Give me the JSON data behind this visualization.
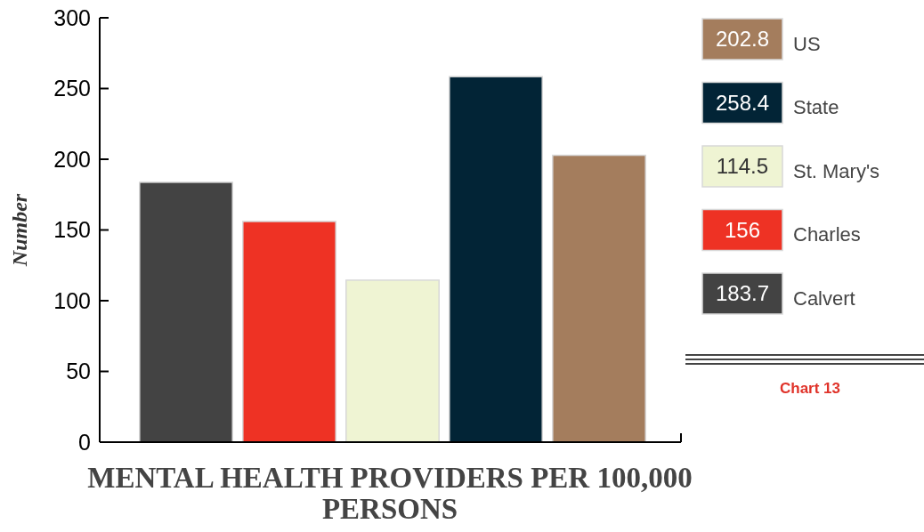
{
  "chart_data": {
    "type": "bar",
    "title": "MENTAL HEALTH PROVIDERS PER 100,000 PERSONS",
    "ylabel": "Number",
    "categories": [
      null,
      null,
      null,
      null,
      null
    ],
    "series": [
      {
        "name": "Calvert",
        "color": "#434343",
        "values": [
          183.7,
          null,
          null,
          null,
          null
        ]
      },
      {
        "name": "Charles",
        "color": "#ee3224",
        "values": [
          null,
          156,
          null,
          null,
          null
        ]
      },
      {
        "name": "St. Mary's",
        "color": "#eff4d3",
        "values": [
          null,
          null,
          114.5,
          null,
          null
        ]
      },
      {
        "name": "State",
        "color": "#022436",
        "values": [
          null,
          null,
          null,
          258.4,
          null
        ]
      },
      {
        "name": "US",
        "color": "#a47d5d",
        "values": [
          null,
          null,
          null,
          null,
          202.8
        ]
      }
    ],
    "stacked": true,
    "ylim": [
      0,
      300
    ],
    "yticks": [
      0,
      50,
      100,
      150,
      200,
      250,
      300
    ],
    "legend": "right",
    "tick_labels": "y",
    "annotations": [
      "183.7",
      "156",
      "114.5",
      "258.4",
      "202.8",
      "Chart 13"
    ]
  }
}
